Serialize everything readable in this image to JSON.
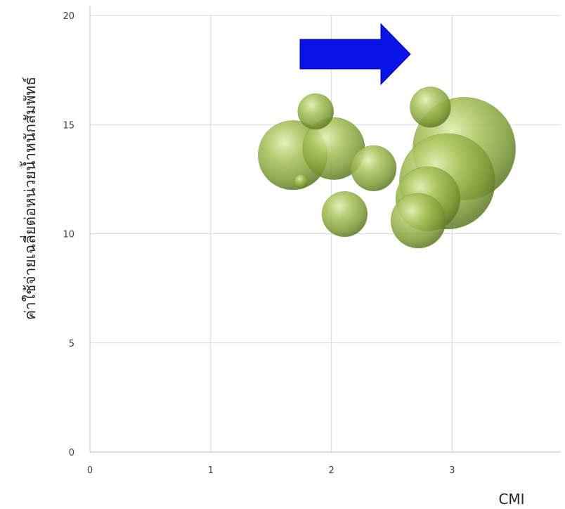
{
  "chart_data": {
    "type": "bubble",
    "title": "",
    "xlabel": "CMI",
    "ylabel": "ค่าใช้จ่ายเฉลี่ยต่อหน่วยน้ำหนักสัมพัทธ์",
    "xlim": [
      0,
      3.9
    ],
    "ylim": [
      0,
      20
    ],
    "x_ticks": [
      0,
      1,
      2,
      3
    ],
    "y_ticks": [
      0,
      5,
      10,
      15,
      20
    ],
    "grid": true,
    "bubble_color": "#8fae3e",
    "arrow_color": "#0a14e6",
    "annotation": "right-pointing arrow",
    "points": [
      {
        "x": 1.68,
        "y": 13.6,
        "size": 0.29
      },
      {
        "x": 1.75,
        "y": 12.4,
        "size": 0.06
      },
      {
        "x": 1.87,
        "y": 15.6,
        "size": 0.15
      },
      {
        "x": 2.02,
        "y": 13.9,
        "size": 0.26
      },
      {
        "x": 2.11,
        "y": 10.9,
        "size": 0.19
      },
      {
        "x": 2.35,
        "y": 13.0,
        "size": 0.19
      },
      {
        "x": 2.72,
        "y": 10.6,
        "size": 0.23
      },
      {
        "x": 2.82,
        "y": 15.8,
        "size": 0.17
      },
      {
        "x": 2.8,
        "y": 11.6,
        "size": 0.27
      },
      {
        "x": 3.1,
        "y": 13.9,
        "size": 0.43
      },
      {
        "x": 2.96,
        "y": 12.4,
        "size": 0.4
      }
    ]
  }
}
